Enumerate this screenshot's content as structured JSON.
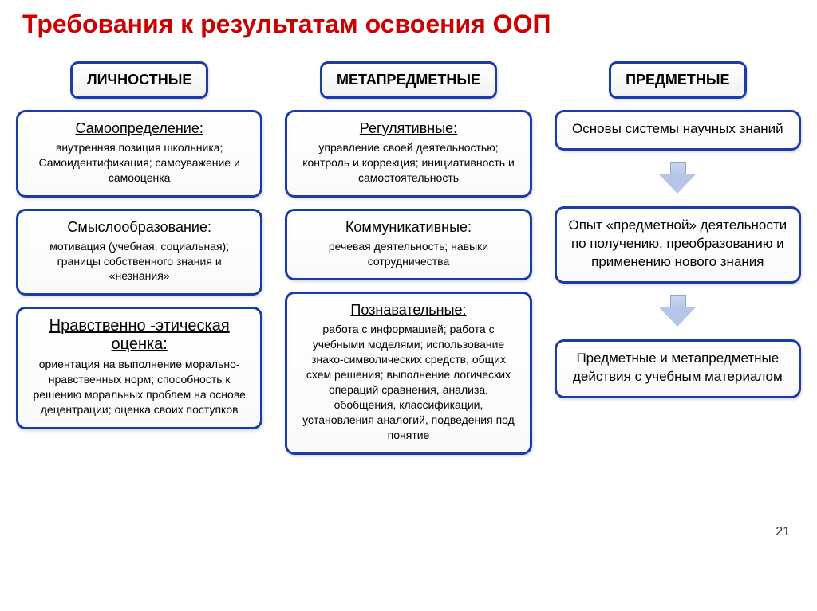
{
  "title": "Требования к результатам освоения ООП",
  "page_number": "21",
  "columns": [
    {
      "header": "ЛИЧНОСТНЫЕ",
      "cards": [
        {
          "title": "Самоопределение:",
          "body": "внутренняя позиция школьника; Самоидентификация; самоуважение и самооценка"
        },
        {
          "title": "Смыслообразование:",
          "body": "мотивация (учебная, социальная); границы собственного знания и «незнания»"
        },
        {
          "title": "Нравственно -этическая оценка:",
          "body": "ориентация на выполнение морально-нравственных норм; способность к решению моральных проблем на основе децентрации; оценка своих поступков"
        }
      ]
    },
    {
      "header": "МЕТАПРЕДМЕТНЫЕ",
      "cards": [
        {
          "title": "Регулятивные:",
          "body": "управление своей деятельностью; контроль и коррекция; инициативность и самостоятельность"
        },
        {
          "title": "Коммуникативные:",
          "body": "речевая деятельность; навыки сотрудничества"
        },
        {
          "title": "Познавательные:",
          "body": "работа с информацией; работа с учебными моделями; использование знако-символических средств, общих схем решения; выполнение логических операций сравнения, анализа, обобщения, классификации, установления аналогий, подведения под понятие"
        }
      ]
    },
    {
      "header": "ПРЕДМЕТНЫЕ",
      "flow": [
        "Основы системы научных знаний",
        "Опыт «предметной» деятельности по получению, преобразованию и применению нового знания",
        "Предметные и метапредметные действия с учебным материалом"
      ]
    }
  ],
  "style": {
    "title_color": "#cc0000",
    "border_color": "#1a3ca8",
    "background": "#ffffff",
    "arrow_fill": "#b5c6e8"
  }
}
